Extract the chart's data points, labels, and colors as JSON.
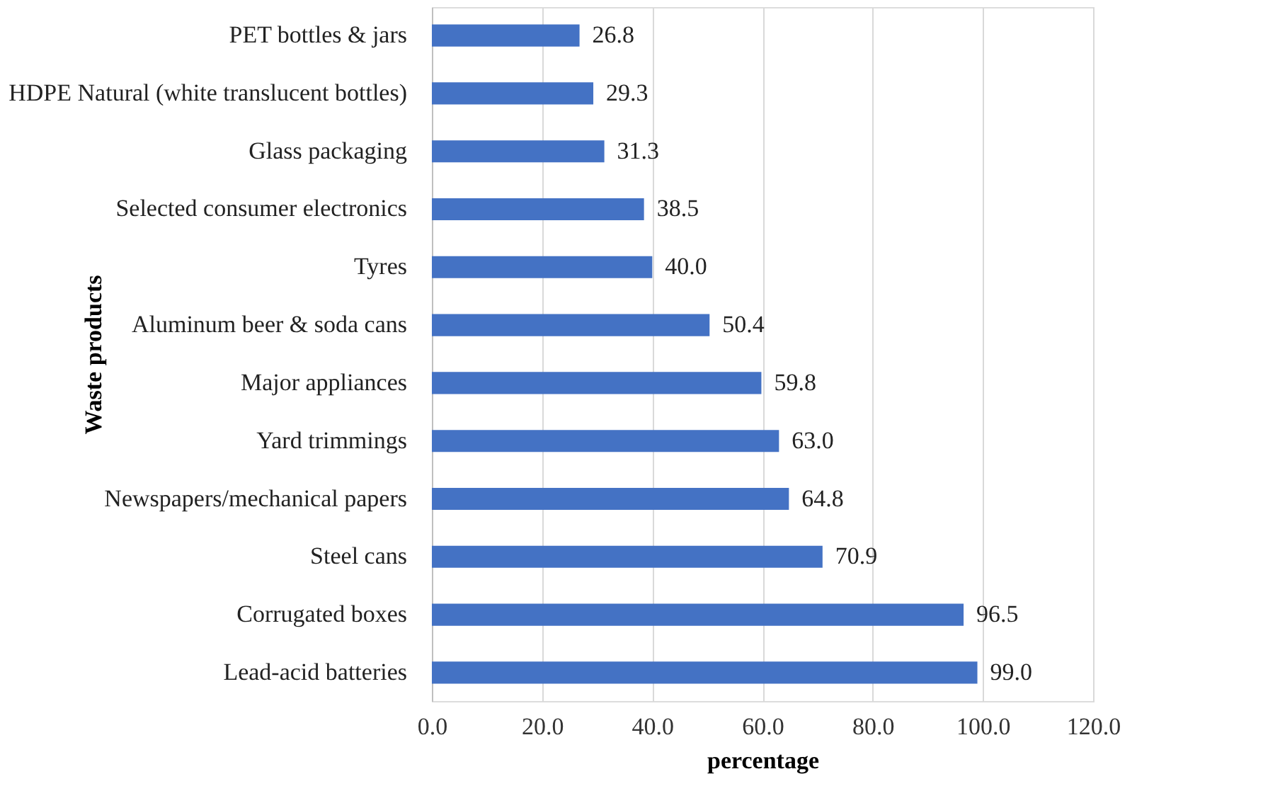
{
  "chart_data": {
    "type": "bar",
    "orientation": "horizontal",
    "xlabel": "percentage",
    "ylabel": "Waste products",
    "categories": [
      "PET bottles & jars",
      "HDPE Natural (white translucent bottles)",
      "Glass packaging",
      "Selected consumer electronics",
      "Tyres",
      "Aluminum beer & soda cans",
      "Major appliances",
      "Yard trimmings",
      "Newspapers/mechanical papers",
      "Steel cans",
      "Corrugated boxes",
      "Lead-acid batteries"
    ],
    "values": [
      26.8,
      29.3,
      31.3,
      38.5,
      40.0,
      50.4,
      59.8,
      63.0,
      64.8,
      70.9,
      96.5,
      99.0
    ],
    "value_labels": [
      "26.8",
      "29.3",
      "31.3",
      "38.5",
      "40.0",
      "50.4",
      "59.8",
      "63.0",
      "64.8",
      "70.9",
      "96.5",
      "99.0"
    ],
    "color": "#4472c4",
    "xlim": [
      0,
      120
    ],
    "xticks": [
      {
        "value": 0,
        "label": "0.0"
      },
      {
        "value": 20,
        "label": "20.0"
      },
      {
        "value": 40,
        "label": "40.0"
      },
      {
        "value": 60,
        "label": "60.0"
      },
      {
        "value": 80,
        "label": "80.0"
      },
      {
        "value": 100,
        "label": "100.0"
      },
      {
        "value": 120,
        "label": "120.0"
      }
    ],
    "grid": "x"
  }
}
